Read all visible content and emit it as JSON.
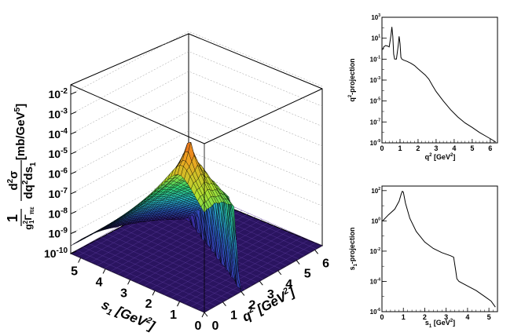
{
  "chart_data": [
    {
      "type": "surface3d",
      "x_axis": {
        "label_main": "s",
        "label_sub": "1",
        "label_unit": "[GeV",
        "label_unit_sup": "2",
        "label_unit_close": "]",
        "ticks": [
          "0",
          "1",
          "2",
          "3",
          "4",
          "5"
        ],
        "range": [
          0,
          5.4
        ]
      },
      "y_axis": {
        "label_main": "q",
        "label_sup": "2",
        "label_unit": "[GeV",
        "label_unit_sup": "2",
        "label_unit_close": "]",
        "ticks": [
          "0",
          "1",
          "2",
          "3",
          "4",
          "5",
          "6"
        ],
        "range": [
          0,
          6.4
        ]
      },
      "z_axis": {
        "scale": "log",
        "range": [
          1e-10,
          0.03
        ],
        "tick_base": "10",
        "tick_exponents": [
          "-10",
          "-9",
          "-8",
          "-7",
          "-6",
          "-5",
          "-4",
          "-3",
          "-2"
        ],
        "label_prefix": "1",
        "label_g": "g",
        "label_g_sup": "2",
        "label_g_sub": "1",
        "label_gamma": "Γ",
        "label_gamma_sub": "πε",
        "label_num": "d",
        "label_num_sup": "2",
        "label_sigma": "σ",
        "label_den": "dq",
        "label_den_sup": "2",
        "label_den_ds": "ds",
        "label_den_sub": "1",
        "label_unit": "[mb/GeV",
        "label_unit_sup": "5",
        "label_unit_close": "]"
      },
      "peak": {
        "s1": 1.0,
        "q2": 0.5,
        "value": 0.02
      },
      "colormap": [
        "#3a1a8c",
        "#2f5fd0",
        "#28b8c8",
        "#30d070",
        "#b0e030",
        "#f0a020",
        "#d02010"
      ]
    },
    {
      "type": "line",
      "title": "q²-projection",
      "ylabel_main": "q",
      "ylabel_sup": "2",
      "ylabel_rest": "-projection",
      "xlabel_main": "q",
      "xlabel_sup": "2",
      "xlabel_unit": "[GeV",
      "xlabel_unit_sup": "2",
      "xlabel_unit_close": "]",
      "yscale": "log",
      "xlim": [
        0,
        6.4
      ],
      "ylim": [
        1e-09,
        1000
      ],
      "x_ticks": [
        "0",
        "1",
        "2",
        "3",
        "4",
        "5",
        "6"
      ],
      "y_tick_base": "10",
      "y_tick_exponents": [
        "-9",
        "-7",
        "-5",
        "-3",
        "-1",
        "1",
        "3"
      ],
      "series": [
        {
          "name": "q2-projection",
          "x": [
            0.03,
            0.1,
            0.2,
            0.3,
            0.4,
            0.5,
            0.55,
            0.6,
            0.65,
            0.7,
            0.8,
            0.9,
            0.95,
            1.0,
            1.05,
            1.1,
            1.2,
            1.4,
            1.6,
            1.8,
            2.0,
            2.2,
            2.4,
            2.6,
            2.8,
            3.0,
            3.4,
            3.8,
            4.2,
            4.6,
            5.0,
            5.4,
            5.8,
            6.1,
            6.3
          ],
          "y": [
            0.8,
            1.5,
            2.0,
            1.8,
            1.5,
            20,
            120,
            15,
            0.3,
            0.1,
            0.1,
            2,
            15,
            3,
            0.15,
            0.1,
            0.08,
            0.06,
            0.04,
            0.025,
            0.012,
            0.006,
            0.003,
            0.0012,
            0.0003,
            8e-05,
            1e-05,
            1.5e-06,
            3e-07,
            8e-08,
            3e-08,
            1e-08,
            4e-09,
            2e-09,
            1.2e-09
          ]
        }
      ]
    },
    {
      "type": "line",
      "title": "s₁-projection",
      "ylabel_main": "s",
      "ylabel_sub": "1",
      "ylabel_rest": "-projection",
      "xlabel_main": "s",
      "xlabel_sub": "1",
      "xlabel_unit": "[GeV",
      "xlabel_unit_sup": "2",
      "xlabel_unit_close": "]",
      "yscale": "log",
      "xlim": [
        0,
        5.4
      ],
      "ylim": [
        1e-06,
        200
      ],
      "x_ticks": [
        "0",
        "1",
        "2",
        "3",
        "4",
        "5"
      ],
      "y_tick_base": "10",
      "y_tick_exponents": [
        "-6",
        "-4",
        "-2",
        "0",
        "2"
      ],
      "series": [
        {
          "name": "s1-projection",
          "x": [
            0.03,
            0.3,
            0.6,
            0.8,
            0.9,
            0.95,
            1.0,
            1.1,
            1.3,
            1.6,
            2.0,
            2.4,
            2.8,
            3.2,
            3.35,
            3.45,
            3.5,
            3.6,
            4.0,
            4.4,
            4.8,
            5.1,
            5.3
          ],
          "y": [
            1.0,
            2.5,
            6.0,
            20,
            60,
            90,
            80,
            15,
            1.5,
            0.2,
            0.04,
            0.015,
            0.008,
            0.005,
            0.004,
            0.0005,
            0.00015,
            0.0001,
            5e-05,
            2.5e-05,
            1e-05,
            5e-06,
            2e-06
          ]
        }
      ]
    }
  ]
}
